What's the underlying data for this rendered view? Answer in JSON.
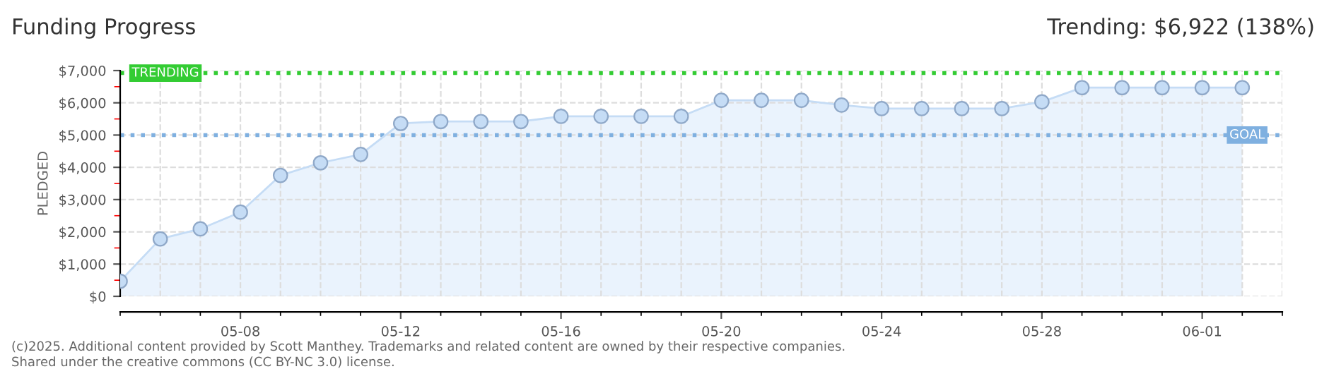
{
  "chart_data": {
    "type": "area",
    "title": "Funding Progress",
    "subtitle": "Trending: $6,922 (138%)",
    "ylabel": "PLEDGED",
    "x": [
      "2025-05-05",
      "2025-05-06",
      "2025-05-07",
      "2025-05-08",
      "2025-05-09",
      "2025-05-10",
      "2025-05-11",
      "2025-05-12",
      "2025-05-13",
      "2025-05-14",
      "2025-05-15",
      "2025-05-16",
      "2025-05-17",
      "2025-05-18",
      "2025-05-19",
      "2025-05-20",
      "2025-05-21",
      "2025-05-22",
      "2025-05-23",
      "2025-05-24",
      "2025-05-25",
      "2025-05-26",
      "2025-05-27",
      "2025-05-28",
      "2025-05-29",
      "2025-05-30",
      "2025-05-31",
      "2025-06-01",
      "2025-06-02"
    ],
    "series": [
      {
        "color": "#c5dcf5",
        "values": [
          470,
          1780,
          2090,
          2610,
          3750,
          4140,
          4400,
          5360,
          5420,
          5420,
          5420,
          5580,
          5580,
          5580,
          5580,
          6080,
          6080,
          6080,
          5930,
          5820,
          5820,
          5820,
          5820,
          6030,
          6470,
          6470,
          6470,
          6470,
          6470
        ]
      }
    ],
    "marker": "circle",
    "xlim": [
      "2025-05-05",
      "2025-06-03"
    ],
    "xticks": [
      {
        "value": "2025-05-08",
        "label": "05-08"
      },
      {
        "value": "2025-05-12",
        "label": "05-12"
      },
      {
        "value": "2025-05-16",
        "label": "05-16"
      },
      {
        "value": "2025-05-20",
        "label": "05-20"
      },
      {
        "value": "2025-05-24",
        "label": "05-24"
      },
      {
        "value": "2025-05-28",
        "label": "05-28"
      },
      {
        "value": "2025-06-01",
        "label": "06-01"
      }
    ],
    "ylim": [
      0,
      7000
    ],
    "yticks": [
      {
        "value": 0,
        "label": "$0"
      },
      {
        "value": 1000,
        "label": "$1,000"
      },
      {
        "value": 2000,
        "label": "$2,000"
      },
      {
        "value": 3000,
        "label": "$3,000"
      },
      {
        "value": 4000,
        "label": "$4,000"
      },
      {
        "value": 5000,
        "label": "$5,000"
      },
      {
        "value": 6000,
        "label": "$6,000"
      },
      {
        "value": 7000,
        "label": "$7,000"
      }
    ],
    "grid": true,
    "ref_lines": [
      {
        "axis": "y",
        "value": 6922,
        "label": "TRENDING",
        "color": "#33cc33",
        "line_style": "dotted"
      },
      {
        "axis": "y",
        "value": 5000,
        "label": "GOAL",
        "color": "#7fb0e0",
        "line_style": "dotted"
      }
    ],
    "annotations": [
      "(c)2025. Additional content provided by Scott Manthey. Trademarks and related content are owned by their respective companies.",
      "Shared under the creative commons (CC BY-NC 3.0) license."
    ]
  }
}
